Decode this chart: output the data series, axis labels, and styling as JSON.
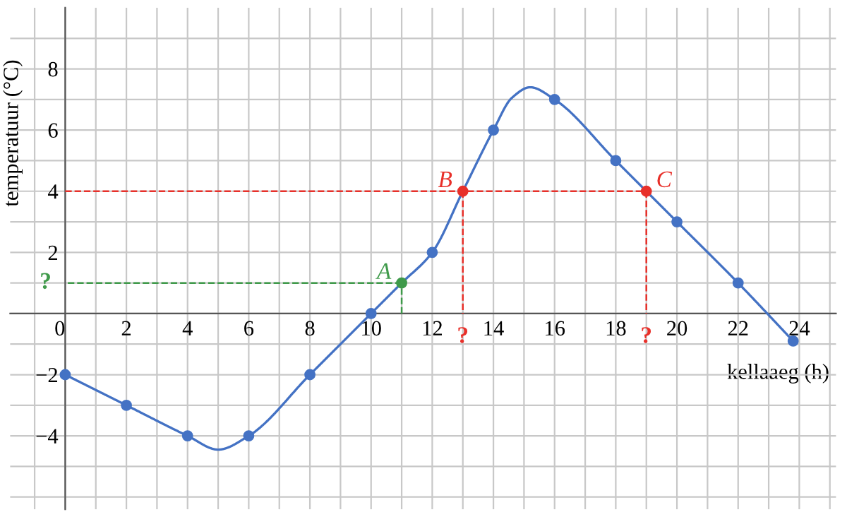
{
  "chart_data": {
    "type": "line",
    "xlabel": "kellaaeg (h)",
    "ylabel": "temperatuur (°C)",
    "xlim": [
      -1.8,
      25.2
    ],
    "ylim": [
      -6.4,
      10
    ],
    "xticks": [
      {
        "value": -1,
        "label": null
      },
      {
        "value": 0,
        "label": "0"
      },
      {
        "value": 1,
        "label": null
      },
      2,
      {
        "value": 3,
        "label": null
      },
      4,
      {
        "value": 5,
        "label": null
      },
      6,
      {
        "value": 7,
        "label": null
      },
      8,
      {
        "value": 9,
        "label": null
      },
      10,
      {
        "value": 11,
        "label": null
      },
      12,
      {
        "value": 13,
        "label": null
      },
      14,
      {
        "value": 15,
        "label": null
      },
      16,
      {
        "value": 17,
        "label": null
      },
      18,
      {
        "value": 19,
        "label": null
      },
      20,
      {
        "value": 21,
        "label": null
      },
      22,
      {
        "value": 23,
        "label": null
      },
      24,
      {
        "value": 25,
        "label": null
      }
    ],
    "yticks": [
      {
        "value": -6,
        "label": null
      },
      {
        "value": -5,
        "label": null
      },
      {
        "value": -4,
        "label": "−4"
      },
      {
        "value": -3,
        "label": null
      },
      {
        "value": -2,
        "label": "−2"
      },
      {
        "value": -1,
        "label": null
      },
      {
        "value": 0,
        "label": null
      },
      {
        "value": 1,
        "label": null
      },
      2,
      {
        "value": 3,
        "label": null
      },
      4,
      {
        "value": 5,
        "label": null
      },
      6,
      {
        "value": 7,
        "label": null
      },
      8,
      {
        "value": 9,
        "label": null
      }
    ],
    "grid": true,
    "series": [
      {
        "color": "#4472c4",
        "x": [
          0,
          2,
          4,
          5,
          6,
          8,
          10,
          11,
          12,
          13,
          14,
          14.6,
          15.2,
          16,
          18,
          19,
          20,
          22,
          23.8
        ],
        "values": [
          -2,
          -3,
          -4,
          -4.45,
          -4,
          -2,
          0,
          1,
          2,
          4,
          6,
          7.05,
          7.4,
          7,
          5,
          4,
          3,
          1,
          -0.9
        ]
      },
      {
        "type": "scatter",
        "marker": "circle",
        "x": [
          0,
          2,
          4,
          6,
          8,
          10,
          11,
          12,
          13,
          14,
          16,
          18,
          19,
          20,
          22,
          23.8
        ],
        "values": [
          -2,
          -3,
          -4,
          -4,
          -2,
          0,
          1,
          2,
          4,
          6,
          7,
          5,
          4,
          3,
          1,
          -0.9
        ],
        "colors": [
          "#4472c4",
          "#4472c4",
          "#4472c4",
          "#4472c4",
          "#4472c4",
          "#4472c4",
          "#3f9a4a",
          "#4472c4",
          "#e8302a",
          "#4472c4",
          "#4472c4",
          "#4472c4",
          "#e8302a",
          "#4472c4",
          "#4472c4",
          "#4472c4"
        ]
      },
      {
        "type": "line",
        "line_style": "dashed",
        "color": "#3f9a4a",
        "x": [
          11,
          0
        ],
        "values": [
          1,
          1
        ]
      },
      {
        "type": "line",
        "line_style": "dashed",
        "color": "#3f9a4a",
        "x": [
          11,
          11
        ],
        "values": [
          0,
          1
        ]
      },
      {
        "type": "line",
        "line_style": "dashed",
        "color": "#e8302a",
        "x": [
          0,
          19
        ],
        "values": [
          4,
          4
        ]
      },
      {
        "type": "line",
        "line_style": "dashed",
        "color": "#e8302a",
        "x": [
          13,
          13
        ],
        "values": [
          4,
          0
        ]
      },
      {
        "type": "line",
        "line_style": "dashed",
        "color": "#e8302a",
        "x": [
          19,
          19
        ],
        "values": [
          4,
          0
        ]
      }
    ],
    "annotations": [
      {
        "text": "A",
        "x": 11,
        "y": 1
      },
      {
        "text": "B",
        "x": 13,
        "y": 4
      },
      {
        "text": "C",
        "x": 19,
        "y": 4
      },
      {
        "text": "?",
        "x": 0,
        "y": 1
      },
      {
        "text": "?",
        "x": 13,
        "y": 0
      },
      {
        "text": "?",
        "x": 19,
        "y": 0
      }
    ]
  }
}
